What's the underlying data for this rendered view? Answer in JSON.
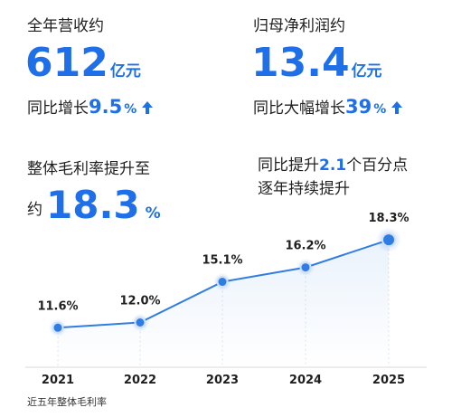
{
  "revenue": {
    "label": "全年营收约",
    "value": "612",
    "unit": "亿元",
    "growth_prefix": "同比增长",
    "growth_value": "9.5",
    "growth_sign": "%"
  },
  "net_profit": {
    "label": "归母净利润约",
    "value": "13.4",
    "unit": "亿元",
    "growth_prefix": "同比大幅增长",
    "growth_value": "39",
    "growth_sign": "%"
  },
  "gross_margin": {
    "label": "整体毛利率提升至",
    "prefix": "约",
    "value": "18.3",
    "sign": "%"
  },
  "note": {
    "line1_prefix": "同比提升",
    "line1_value": "2.1",
    "line1_suffix": "个百分点",
    "line2": "逐年持续提升"
  },
  "caption": "近五年整体毛利率",
  "colors": {
    "accent": "#1e6fe8",
    "line": "#2f7de1",
    "baseline": "#d6d9de"
  },
  "icons": {
    "growth_arrow": "up-arrow-icon"
  },
  "chart_data": {
    "type": "line",
    "categories": [
      "2021",
      "2022",
      "2023",
      "2024",
      "2025"
    ],
    "values": [
      11.6,
      12.0,
      15.1,
      16.2,
      18.3
    ],
    "data_labels": [
      "11.6%",
      "12.0%",
      "15.1%",
      "16.2%",
      "18.3%"
    ],
    "title": "",
    "xlabel": "",
    "ylabel": "",
    "ylim": [
      9,
      19
    ],
    "grid": false,
    "legend": "none"
  }
}
